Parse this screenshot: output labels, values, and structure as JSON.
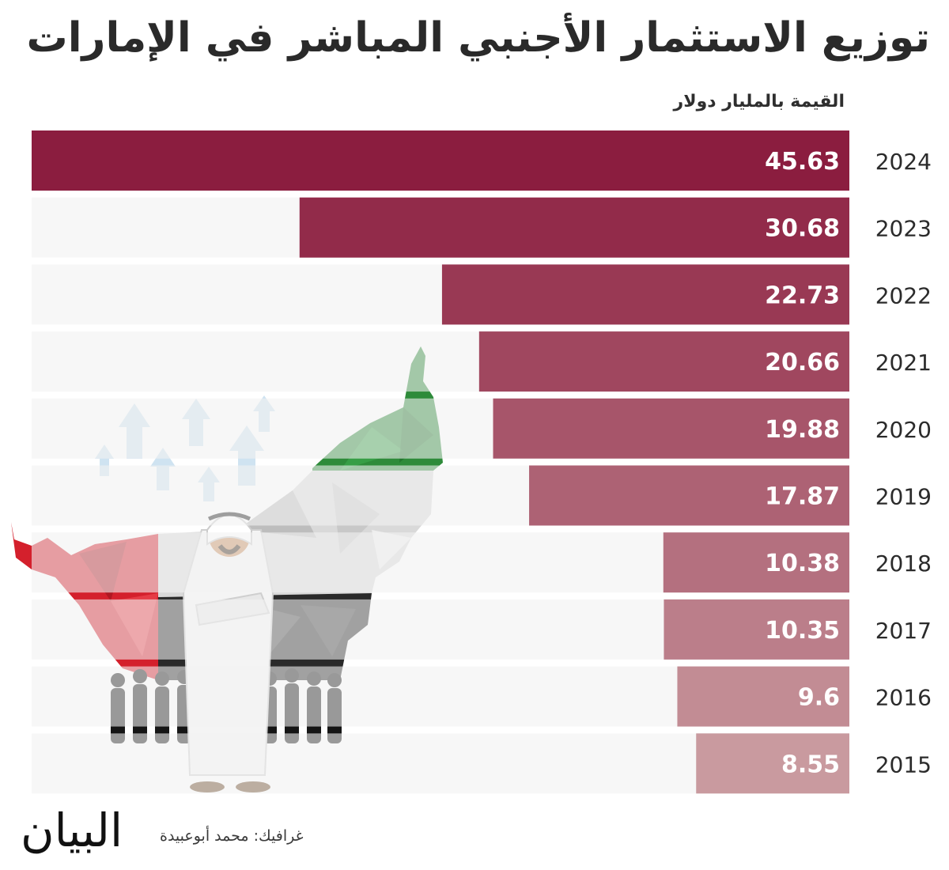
{
  "title": "توزيع الاستثمار الأجنبي المباشر في الإمارات",
  "unit": "القيمة بالمليار دولار",
  "credit": "غرافيك: محمد أبوعبيدة",
  "logo": "البيان",
  "colors": {
    "bar_max": "#8b1d3f",
    "bar_min": "#c99a9f",
    "track": "#f1f1f1",
    "value_text": "#ffffff",
    "year_text": "#2b2b2b",
    "flag_red": "#d4202c",
    "flag_green": "#2e8b3a",
    "flag_black": "#2a2a2a",
    "flag_white": "#e6e6e6"
  },
  "chart_data": {
    "type": "bar",
    "orientation": "horizontal",
    "categories": [
      "2024",
      "2023",
      "2022",
      "2021",
      "2020",
      "2019",
      "2018",
      "2017",
      "2016",
      "2015"
    ],
    "values": [
      45.63,
      30.68,
      22.73,
      20.66,
      19.88,
      17.87,
      10.38,
      10.35,
      9.6,
      8.55
    ],
    "value_labels": [
      "45.63",
      "30.68",
      "22.73",
      "20.66",
      "19.88",
      "17.87",
      "10.38",
      "10.35",
      "9.6",
      "8.55"
    ],
    "ylabel": "القيمة بالمليار دولار",
    "xlim": [
      0,
      45.63
    ],
    "grid": false,
    "legend": "none"
  }
}
